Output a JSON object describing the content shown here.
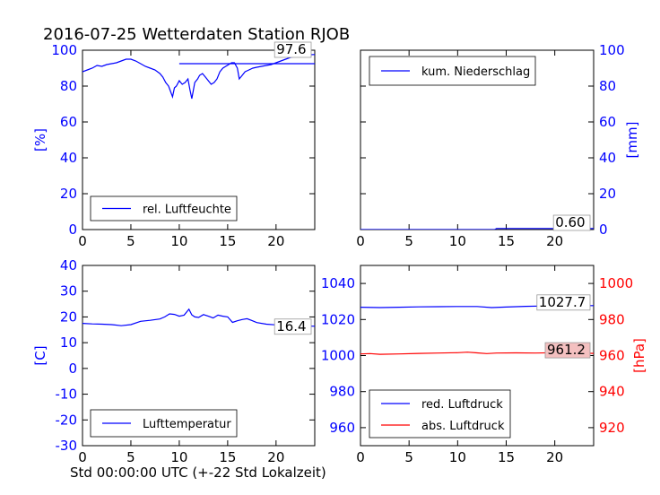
{
  "figure": {
    "title": "2016-07-25 Wetterdaten Station RJOB",
    "xlabel": "Std 00:00:00 UTC (+-22 Std Lokalzeit)"
  },
  "colors": {
    "blue": "#0000ff",
    "red": "#ff0000",
    "axis": "#000000"
  },
  "chart_data": [
    {
      "type": "line",
      "panel": "top-left",
      "ylabel": "[%]",
      "xlim": [
        0,
        24
      ],
      "ylim": [
        0,
        100
      ],
      "xticks": [
        0,
        5,
        10,
        15,
        20
      ],
      "yticks": [
        0,
        20,
        40,
        60,
        80,
        100
      ],
      "legend": "lower-left",
      "value_label": "97.6",
      "series": [
        {
          "name": "rel. Luftfeuchte",
          "color": "#0000ff",
          "x": [
            0,
            0.5,
            1,
            1.5,
            2,
            2.5,
            3,
            3.5,
            4,
            4.5,
            5,
            5.5,
            6,
            6.5,
            7,
            7.5,
            8,
            8.3,
            8.6,
            8.9,
            9.1,
            9.3,
            9.5,
            9.7,
            10,
            10.3,
            10.6,
            10.9,
            11.1,
            11.3,
            11.6,
            11.9,
            12.1,
            12.4,
            12.7,
            13,
            13.3,
            13.6,
            13.9,
            14.2,
            14.5,
            14.8,
            15.1,
            15.4,
            15.7,
            16,
            16.2,
            16.5,
            16.8,
            17.2,
            17.6,
            18,
            18.5,
            19,
            19.5,
            20,
            20.5,
            21,
            21.5,
            22,
            22.5,
            23,
            23.5,
            24
          ],
          "y": [
            88,
            89,
            90,
            91.5,
            91,
            92,
            92.5,
            93,
            94,
            95,
            95,
            94,
            92.5,
            91,
            90,
            89,
            87,
            85,
            82,
            80,
            77,
            74,
            79,
            80,
            83,
            81,
            82,
            84,
            78,
            73,
            82,
            84,
            86,
            87,
            85,
            83,
            81,
            82,
            84,
            88,
            90,
            91,
            92,
            93,
            93,
            90,
            84,
            86,
            88,
            89,
            90,
            90.5,
            91,
            91.5,
            92,
            93,
            94,
            95,
            96,
            96.5,
            97,
            97.3,
            97.5,
            97.6
          ]
        },
        {
          "name": "",
          "color": "#0000ff",
          "x": [
            10,
            24
          ],
          "y": [
            92.5,
            92.5
          ]
        }
      ]
    },
    {
      "type": "line",
      "panel": "top-right",
      "ylabel": "[mm]",
      "xlim": [
        0,
        24
      ],
      "ylim": [
        0,
        100
      ],
      "xticks": [
        0,
        5,
        10,
        15,
        20
      ],
      "yticks": [
        0,
        20,
        40,
        60,
        80,
        100
      ],
      "legend": "top-left",
      "value_label": "0.60",
      "series": [
        {
          "name": "kum. Niederschlag",
          "color": "#0000ff",
          "x": [
            0,
            13.8,
            14,
            24
          ],
          "y": [
            0,
            0,
            0.6,
            0.6
          ]
        }
      ]
    },
    {
      "type": "line",
      "panel": "bottom-left",
      "ylabel": "[C]",
      "xlim": [
        0,
        24
      ],
      "ylim": [
        -30,
        40
      ],
      "xticks": [
        0,
        5,
        10,
        15,
        20
      ],
      "yticks": [
        -30,
        -20,
        -10,
        0,
        10,
        20,
        30,
        40
      ],
      "legend": "lower-left",
      "value_label": "16.4",
      "series": [
        {
          "name": "Lufttemperatur",
          "color": "#0000ff",
          "x": [
            0,
            1,
            2,
            3,
            4,
            5,
            6,
            7,
            8,
            8.5,
            9,
            9.5,
            10,
            10.5,
            11,
            11.3,
            11.6,
            12,
            12.5,
            13,
            13.5,
            14,
            14.5,
            15,
            15.5,
            16,
            16.5,
            17,
            17.5,
            18,
            19,
            20,
            21,
            22,
            23,
            24
          ],
          "y": [
            17.5,
            17.3,
            17.2,
            17.0,
            16.6,
            17.0,
            18.3,
            18.7,
            19.2,
            20.0,
            21.2,
            21.0,
            20.3,
            20.7,
            23.0,
            20.8,
            20.0,
            19.8,
            20.9,
            20.3,
            19.6,
            20.7,
            20.3,
            20.0,
            17.9,
            18.5,
            19.0,
            19.3,
            18.6,
            17.8,
            17.2,
            16.9,
            16.7,
            16.6,
            16.5,
            16.4
          ]
        }
      ]
    },
    {
      "type": "line",
      "panel": "bottom-right",
      "ylabel": "[hPa]",
      "xlim": [
        0,
        24
      ],
      "ylim_left": [
        950,
        1050
      ],
      "ylim_right": [
        910,
        1010
      ],
      "xticks": [
        0,
        5,
        10,
        15,
        20
      ],
      "yticks_left": [
        960,
        980,
        1000,
        1020,
        1040
      ],
      "yticks_right": [
        920,
        940,
        960,
        980,
        1000
      ],
      "legend": "lower-left",
      "series": [
        {
          "name": "red. Luftdruck",
          "color": "#0000ff",
          "axis": "left",
          "value_label": "1027.7",
          "x": [
            0,
            2,
            4,
            6,
            8,
            10,
            12,
            13.5,
            15,
            17,
            19,
            21,
            24
          ],
          "y": [
            1026.8,
            1026.6,
            1026.8,
            1027.0,
            1027.1,
            1027.2,
            1027.2,
            1026.6,
            1026.9,
            1027.3,
            1027.5,
            1027.6,
            1027.7
          ]
        },
        {
          "name": "abs. Luftdruck",
          "color": "#ff0000",
          "axis": "right",
          "value_label": "961.2",
          "x": [
            0,
            1,
            2,
            4,
            6,
            8,
            10,
            11,
            12,
            13,
            14,
            16,
            18,
            20,
            22,
            24
          ],
          "y": [
            960.9,
            961.1,
            960.7,
            960.9,
            961.2,
            961.4,
            961.6,
            961.9,
            961.5,
            961.1,
            961.4,
            961.5,
            961.4,
            961.6,
            961.7,
            961.2
          ]
        }
      ]
    }
  ]
}
